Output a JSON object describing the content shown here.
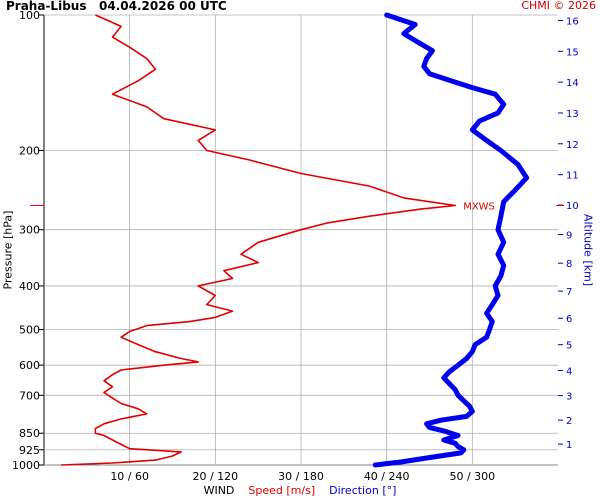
{
  "header": {
    "station": "Praha-Libus",
    "datetime": "04.04.2026 00 UTC",
    "credit": "CHMI © 2026"
  },
  "axes": {
    "left_label": "Pressure [hPa]",
    "right_label": "Altitude [km]",
    "bottom_prefix": "WIND",
    "bottom_speed": "Speed [m/s]",
    "bottom_direction": "Direction [°]"
  },
  "colors": {
    "speed": "#e00000",
    "direction": "#0000ee",
    "grid": "#b0b0b0",
    "axis_text": "#000000",
    "altitude_text": "#0000cc"
  },
  "chart_data": {
    "type": "line",
    "title": "Praha-Libus 04.04.2026 00 UTC",
    "ylabel": "Pressure [hPa]",
    "y2label": "Altitude [km]",
    "xlabel": "WIND Speed [m/s] Direction [°]",
    "y_scale": "log",
    "ylim": [
      1000,
      100
    ],
    "y_ticks": [
      100,
      200,
      300,
      400,
      500,
      600,
      700,
      850,
      925,
      1000
    ],
    "x_ticks": [
      "10 / 60",
      "20 / 120",
      "30 / 180",
      "40 / 240",
      "50 / 300"
    ],
    "speed_range": [
      0,
      60
    ],
    "direction_range": [
      0,
      360
    ],
    "altitude_ticks_km": [
      1,
      2,
      3,
      4,
      5,
      6,
      7,
      8,
      9,
      10,
      11,
      12,
      13,
      14,
      15,
      16
    ],
    "annotation": {
      "text": "MXWS",
      "pressure": 265,
      "speed": 48
    },
    "series": [
      {
        "name": "Speed [m/s]",
        "unit": "m/s",
        "points": [
          [
            1000,
            2
          ],
          [
            990,
            8
          ],
          [
            975,
            13
          ],
          [
            955,
            15
          ],
          [
            935,
            16
          ],
          [
            920,
            10
          ],
          [
            900,
            9
          ],
          [
            880,
            8
          ],
          [
            860,
            7
          ],
          [
            850,
            6
          ],
          [
            830,
            6
          ],
          [
            810,
            7
          ],
          [
            790,
            9
          ],
          [
            770,
            12
          ],
          [
            750,
            11
          ],
          [
            730,
            9
          ],
          [
            710,
            8
          ],
          [
            690,
            7
          ],
          [
            670,
            8
          ],
          [
            650,
            7
          ],
          [
            630,
            8
          ],
          [
            615,
            9
          ],
          [
            600,
            14
          ],
          [
            590,
            18
          ],
          [
            580,
            16
          ],
          [
            560,
            13
          ],
          [
            540,
            11
          ],
          [
            520,
            9
          ],
          [
            505,
            10
          ],
          [
            490,
            12
          ],
          [
            480,
            17
          ],
          [
            470,
            20
          ],
          [
            455,
            22
          ],
          [
            440,
            19
          ],
          [
            420,
            20
          ],
          [
            400,
            18
          ],
          [
            385,
            22
          ],
          [
            370,
            21
          ],
          [
            355,
            25
          ],
          [
            340,
            23
          ],
          [
            320,
            25
          ],
          [
            300,
            30
          ],
          [
            290,
            33
          ],
          [
            280,
            38
          ],
          [
            270,
            44
          ],
          [
            265,
            48
          ],
          [
            255,
            42
          ],
          [
            240,
            38
          ],
          [
            225,
            30
          ],
          [
            210,
            24
          ],
          [
            200,
            19
          ],
          [
            190,
            18
          ],
          [
            180,
            20
          ],
          [
            170,
            14
          ],
          [
            160,
            12
          ],
          [
            150,
            8
          ],
          [
            140,
            11
          ],
          [
            132,
            13
          ],
          [
            125,
            12
          ],
          [
            118,
            10
          ],
          [
            112,
            8
          ],
          [
            106,
            9
          ],
          [
            100,
            6
          ]
        ]
      },
      {
        "name": "Direction [°]",
        "unit": "deg",
        "points": [
          [
            1000,
            232
          ],
          [
            985,
            250
          ],
          [
            965,
            268
          ],
          [
            950,
            282
          ],
          [
            940,
            292
          ],
          [
            925,
            294
          ],
          [
            910,
            290
          ],
          [
            895,
            288
          ],
          [
            880,
            280
          ],
          [
            860,
            290
          ],
          [
            840,
            280
          ],
          [
            825,
            270
          ],
          [
            810,
            268
          ],
          [
            795,
            278
          ],
          [
            780,
            296
          ],
          [
            760,
            300
          ],
          [
            740,
            298
          ],
          [
            720,
            294
          ],
          [
            700,
            290
          ],
          [
            680,
            288
          ],
          [
            660,
            284
          ],
          [
            640,
            280
          ],
          [
            620,
            284
          ],
          [
            600,
            290
          ],
          [
            580,
            296
          ],
          [
            560,
            300
          ],
          [
            540,
            302
          ],
          [
            520,
            310
          ],
          [
            500,
            312
          ],
          [
            480,
            314
          ],
          [
            460,
            310
          ],
          [
            440,
            314
          ],
          [
            420,
            318
          ],
          [
            400,
            316
          ],
          [
            380,
            320
          ],
          [
            360,
            322
          ],
          [
            340,
            318
          ],
          [
            320,
            322
          ],
          [
            300,
            318
          ],
          [
            280,
            320
          ],
          [
            260,
            322
          ],
          [
            245,
            330
          ],
          [
            230,
            338
          ],
          [
            215,
            332
          ],
          [
            200,
            320
          ],
          [
            190,
            310
          ],
          [
            180,
            300
          ],
          [
            172,
            305
          ],
          [
            165,
            318
          ],
          [
            158,
            322
          ],
          [
            150,
            316
          ],
          [
            145,
            300
          ],
          [
            140,
            285
          ],
          [
            135,
            270
          ],
          [
            130,
            266
          ],
          [
            125,
            268
          ],
          [
            120,
            272
          ],
          [
            115,
            262
          ],
          [
            110,
            252
          ],
          [
            105,
            260
          ],
          [
            100,
            240
          ]
        ]
      }
    ]
  }
}
